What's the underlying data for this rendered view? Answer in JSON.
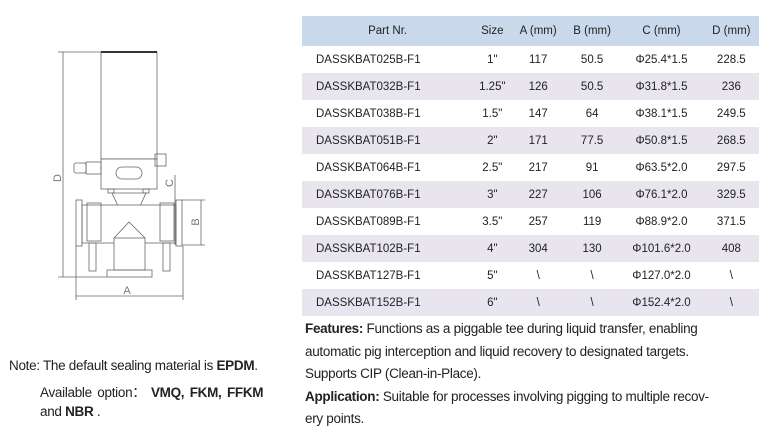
{
  "drawing": {
    "labels": {
      "a": "A",
      "b": "B",
      "c": "C",
      "d": "D"
    }
  },
  "table": {
    "headers": [
      "Part Nr.",
      "Size",
      "A (mm)",
      "B (mm)",
      "C (mm)",
      "D (mm)"
    ],
    "rows": [
      [
        "DASSKBAT025B-F1",
        "1\"",
        "117",
        "50.5",
        "Φ25.4*1.5",
        "228.5"
      ],
      [
        "DASSKBAT032B-F1",
        "1.25\"",
        "126",
        "50.5",
        "Φ31.8*1.5",
        "236"
      ],
      [
        "DASSKBAT038B-F1",
        "1.5\"",
        "147",
        "64",
        "Φ38.1*1.5",
        "249.5"
      ],
      [
        "DASSKBAT051B-F1",
        "2\"",
        "171",
        "77.5",
        "Φ50.8*1.5",
        "268.5"
      ],
      [
        "DASSKBAT064B-F1",
        "2.5\"",
        "217",
        "91",
        "Φ63.5*2.0",
        "297.5"
      ],
      [
        "DASSKBAT076B-F1",
        "3\"",
        "227",
        "106",
        "Φ76.1*2.0",
        "329.5"
      ],
      [
        "DASSKBAT089B-F1",
        "3.5\"",
        "257",
        "119",
        "Φ88.9*2.0",
        "371.5"
      ],
      [
        "DASSKBAT102B-F1",
        "4\"",
        "304",
        "130",
        "Φ101.6*2.0",
        "408"
      ],
      [
        "DASSKBAT127B-F1",
        "5\"",
        "\\",
        "\\",
        "Φ127.0*2.0",
        "\\"
      ],
      [
        "DASSKBAT152B-F1",
        "6\"",
        "\\",
        "\\",
        "Φ152.4*2.0",
        "\\"
      ]
    ],
    "header_color": "#c9d8ea",
    "alt_row_color": "#e8e5ee"
  },
  "note": {
    "prefix": "Note: The default sealing material is ",
    "default": "EPDM",
    "suffix": ".",
    "options_prefix": "Available  option： ",
    "opt1": "VMQ,",
    "opt2": "FKM,",
    "opt3": "FFKM",
    "and": "and ",
    "last": "NBR",
    "end": " ."
  },
  "features": {
    "label": "Features:",
    "lines": [
      " Functions as a piggable tee during liquid transfer, enabling",
      "automatic pig interception and liquid recovery to designated targets.",
      "Supports CIP (Clean-in-Place)."
    ]
  },
  "application": {
    "label": "Application:",
    "lines": [
      " Suitable for processes involving pigging to multiple recov-",
      "ery points."
    ]
  }
}
